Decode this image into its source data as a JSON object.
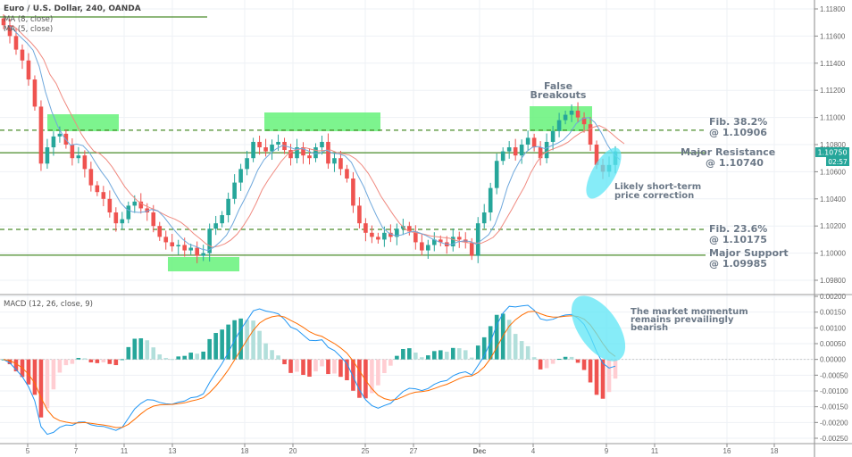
{
  "header": {
    "title": "Euro / U.S. Dollar, 240, OANDA",
    "ma1": "MA (8, close)",
    "ma2": "MA (5, close)"
  },
  "macd_label": "MACD (12, 26, close, 9)",
  "price_tag": {
    "price": "1.10750",
    "countdown": "02:57"
  },
  "annotations": {
    "false_breakouts": [
      "False",
      "Breakouts"
    ],
    "fib382": [
      "Fib. 38.2%",
      "@ 1.10906"
    ],
    "resistance": [
      "Major Resistance",
      "@ 1.10740"
    ],
    "correction": [
      "Likely short-term",
      "price correction"
    ],
    "fib236": [
      "Fib. 23.6%",
      "@ 1.10175"
    ],
    "support": [
      "Major Support",
      "@ 1.09985"
    ],
    "momentum": [
      "The market momentum",
      "remains prevailingly",
      "bearish"
    ]
  },
  "colors": {
    "up": "#26a69a",
    "down": "#ef5350",
    "zone": "#66f27a",
    "ellipse": "#5ee6f5",
    "level": "#4a8c2a",
    "ma_fast": "#6fa8dc",
    "ma_slow": "#f08a80"
  },
  "chart_data": [
    {
      "type": "candlestick",
      "symbol": "EURUSD",
      "timeframe": "240",
      "ylim": [
        1.0975,
        1.119
      ],
      "yticks": [
        "1.11800",
        "1.11600",
        "1.11400",
        "1.11200",
        "1.11000",
        "1.10800",
        "1.10600",
        "1.10400",
        "1.10200",
        "1.10000",
        "1.09800"
      ],
      "xticks": [
        "5",
        "7",
        "11",
        "13",
        "18",
        "20",
        "25",
        "27",
        "Dec",
        "4",
        "9",
        "11",
        "16",
        "18"
      ],
      "closes": [
        1.1168,
        1.116,
        1.115,
        1.1142,
        1.1128,
        1.1108,
        1.1066,
        1.1078,
        1.1086,
        1.1088,
        1.108,
        1.107,
        1.1072,
        1.1062,
        1.105,
        1.1045,
        1.104,
        1.103,
        1.1022,
        1.1025,
        1.1035,
        1.1038,
        1.1033,
        1.103,
        1.102,
        1.1012,
        1.1008,
        1.1005,
        1.1006,
        1.1002,
        1.1004,
        1.0998,
        1.1,
        1.1018,
        1.1022,
        1.1028,
        1.104,
        1.1052,
        1.1062,
        1.107,
        1.1082,
        1.1078,
        1.1075,
        1.108,
        1.1082,
        1.1076,
        1.107,
        1.1078,
        1.1072,
        1.107,
        1.1078,
        1.1082,
        1.1066,
        1.107,
        1.1062,
        1.1055,
        1.1035,
        1.1022,
        1.1015,
        1.1012,
        1.101,
        1.1015,
        1.1012,
        1.1018,
        1.102,
        1.1016,
        1.1008,
        1.1002,
        1.1006,
        1.101,
        1.1008,
        1.1005,
        1.1012,
        1.101,
        1.1008,
        1.0998,
        1.1022,
        1.103,
        1.1048,
        1.1068,
        1.1075,
        1.1078,
        1.1072,
        1.108,
        1.1085,
        1.1078,
        1.107,
        1.1082,
        1.109,
        1.1098,
        1.1102,
        1.1105,
        1.11,
        1.1095,
        1.108,
        1.1065,
        1.106,
        1.1065,
        1.1075
      ],
      "levels": [
        {
          "name": "Fib. 38.2%",
          "value": 1.10906,
          "style": "dashed"
        },
        {
          "name": "Major Resistance",
          "value": 1.1074,
          "style": "solid"
        },
        {
          "name": "Fib. 23.6%",
          "value": 1.10175,
          "style": "dashed"
        },
        {
          "name": "Major Support",
          "value": 1.09985,
          "style": "solid"
        }
      ],
      "moving_averages": [
        {
          "name": "MA (8, close)",
          "period": 8
        },
        {
          "name": "MA (5, close)",
          "period": 5
        }
      ]
    },
    {
      "type": "macd",
      "params": "12, 26, close, 9",
      "ylim": [
        -0.0025,
        0.002
      ],
      "yticks": [
        "0.00200",
        "0.00150",
        "0.00100",
        "0.00050",
        "0.00000",
        "-0.00050",
        "-0.00100",
        "-0.00150",
        "-0.00200",
        "-0.00250"
      ]
    }
  ]
}
